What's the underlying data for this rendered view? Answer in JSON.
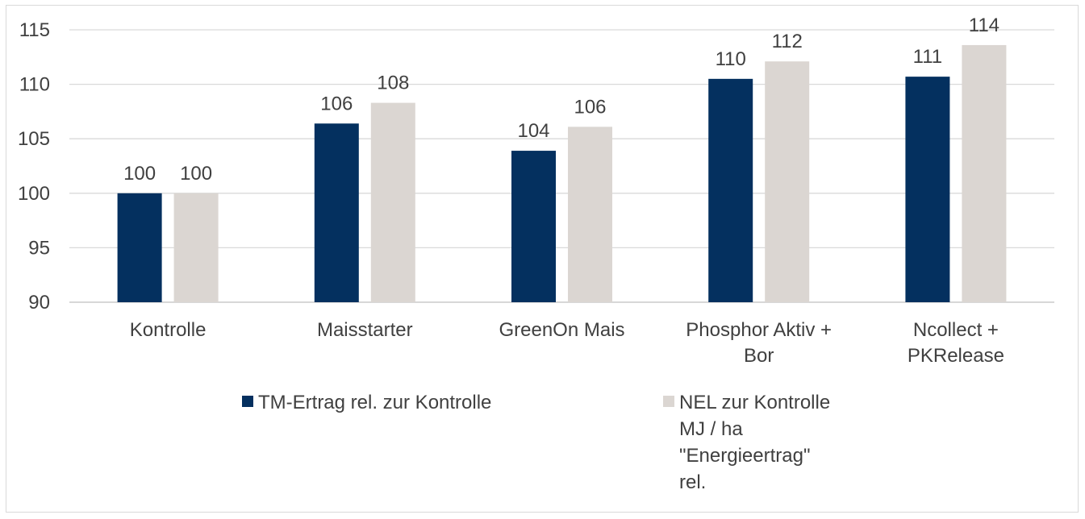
{
  "chart_data": {
    "type": "bar",
    "title": "",
    "xlabel": "",
    "ylabel": "",
    "ylim": [
      90,
      115
    ],
    "yticks": [
      90,
      95,
      100,
      105,
      110,
      115
    ],
    "grid": true,
    "legend_position": "bottom",
    "categories": [
      [
        "Kontrolle"
      ],
      [
        "Maisstarter"
      ],
      [
        "GreenOn Mais"
      ],
      [
        "Phosphor Aktiv +",
        "Bor"
      ],
      [
        "Ncollect +",
        "PKRelease"
      ]
    ],
    "series": [
      {
        "name": [
          "TM-Ertrag rel. zur Kontrolle"
        ],
        "color": "#04305f",
        "values": [
          100,
          106.4,
          103.9,
          110.5,
          110.7
        ],
        "labels": [
          "100",
          "106",
          "104",
          "110",
          "111"
        ]
      },
      {
        "name": [
          "NEL zur Kontrolle",
          "MJ / ha",
          "\"Energieertrag\"",
          "rel."
        ],
        "color": "#dbd6d2",
        "values": [
          100,
          108.3,
          106.1,
          112.1,
          113.6
        ],
        "labels": [
          "100",
          "108",
          "106",
          "112",
          "114"
        ]
      }
    ]
  }
}
